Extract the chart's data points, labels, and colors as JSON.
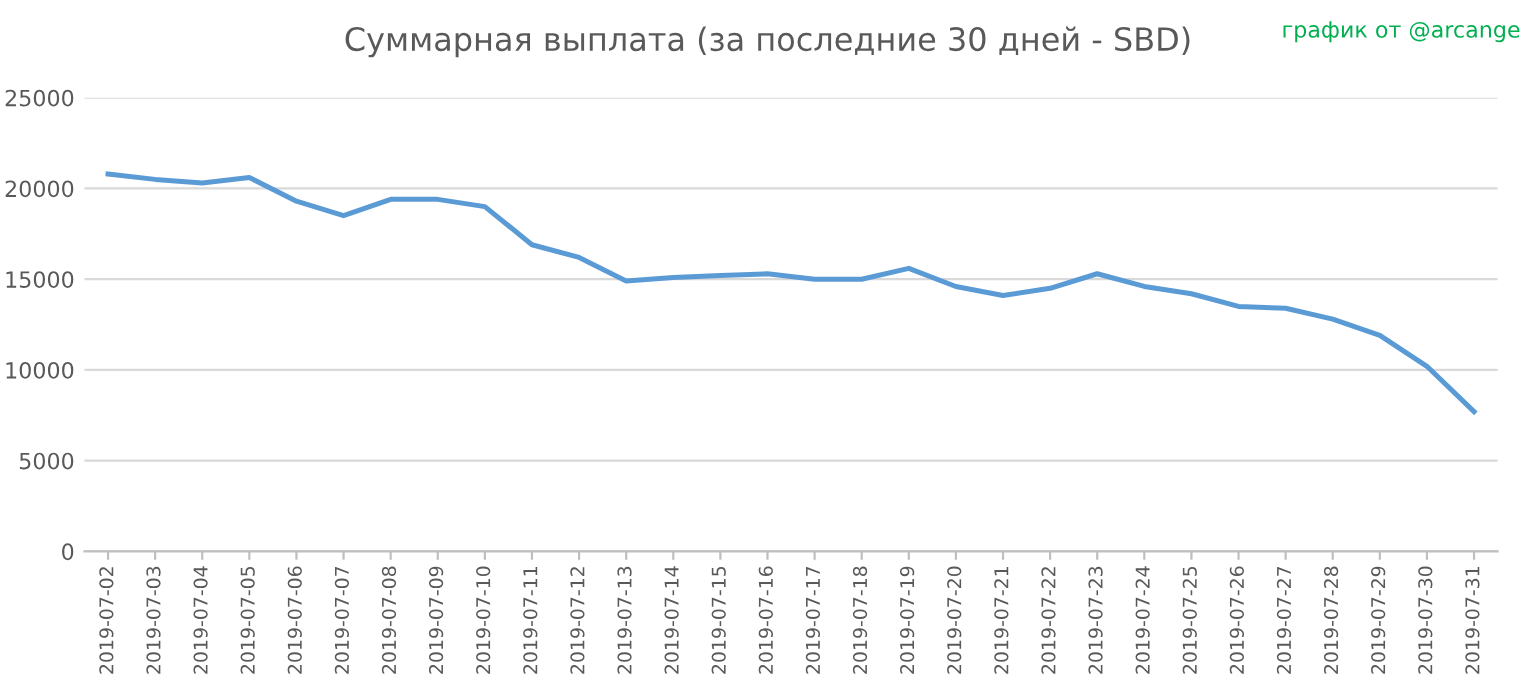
{
  "chart_data": {
    "type": "line",
    "title": "Суммарная выплата (за последние 30 дней - SBD)",
    "annotations": [
      "график от @arcange"
    ],
    "categories": [
      "2019-07-02",
      "2019-07-03",
      "2019-07-04",
      "2019-07-05",
      "2019-07-06",
      "2019-07-07",
      "2019-07-08",
      "2019-07-09",
      "2019-07-10",
      "2019-07-11",
      "2019-07-12",
      "2019-07-13",
      "2019-07-14",
      "2019-07-15",
      "2019-07-16",
      "2019-07-17",
      "2019-07-18",
      "2019-07-19",
      "2019-07-20",
      "2019-07-21",
      "2019-07-22",
      "2019-07-23",
      "2019-07-24",
      "2019-07-25",
      "2019-07-26",
      "2019-07-27",
      "2019-07-28",
      "2019-07-29",
      "2019-07-30",
      "2019-07-31"
    ],
    "series": [
      {
        "color": "#5b9bd5",
        "values": [
          20800,
          20500,
          20300,
          20600,
          19300,
          18500,
          19400,
          19400,
          19000,
          16900,
          16200,
          14900,
          15100,
          15200,
          15300,
          15000,
          15000,
          15600,
          14600,
          14100,
          14500,
          15300,
          14600,
          14200,
          13500,
          13400,
          12800,
          11900,
          10200,
          7700
        ]
      }
    ],
    "ylim": [
      0,
      25000
    ],
    "yticks": [
      0,
      5000,
      10000,
      15000,
      20000,
      25000
    ],
    "grid": "y"
  }
}
